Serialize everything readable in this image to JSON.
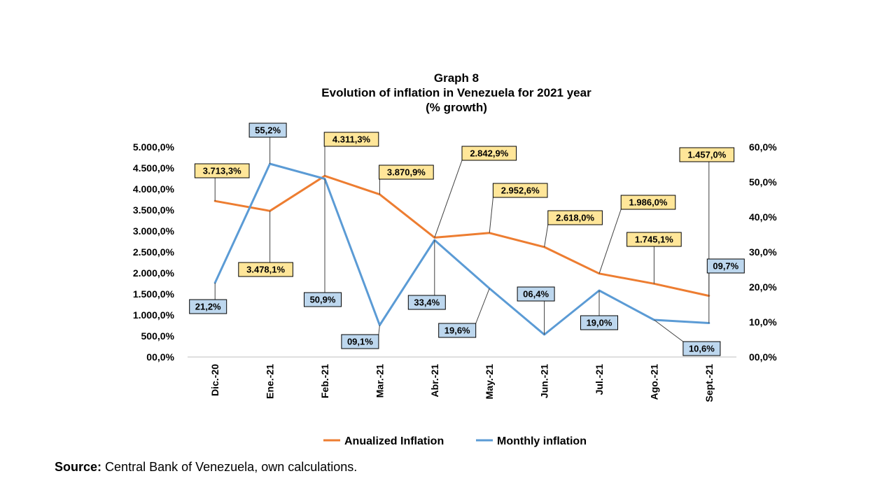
{
  "chart_data": {
    "type": "line",
    "title": [
      "Graph 8",
      "Evolution of inflation in Venezuela for 2021 year",
      "(% growth)"
    ],
    "categories": [
      "Dic.-20",
      "Ene.-21",
      "Feb.-21",
      "Mar.-21",
      "Abr.-21",
      "May.-21",
      "Jun.-21",
      "Jul.-21",
      "Ago.-21",
      "Sept.-21"
    ],
    "left_axis": {
      "min": 0,
      "max": 5000,
      "step": 500,
      "ticks": [
        "00,0%",
        "500,0%",
        "1.000,0%",
        "1.500,0%",
        "2.000,0%",
        "2.500,0%",
        "3.000,0%",
        "3.500,0%",
        "4.000,0%",
        "4.500,0%",
        "5.000,0%"
      ]
    },
    "right_axis": {
      "min": 0,
      "max": 60,
      "step": 10,
      "ticks": [
        "00,0%",
        "10,0%",
        "20,0%",
        "30,0%",
        "40,0%",
        "50,0%",
        "60,0%"
      ]
    },
    "series": [
      {
        "name": "Anualized Inflation",
        "axis": "left",
        "color": "#ED7D31",
        "values": [
          3713.3,
          3478.1,
          4311.3,
          3870.9,
          2842.9,
          2952.6,
          2618.0,
          1986.0,
          1745.1,
          1457.0
        ],
        "labels": [
          "3.713,3%",
          "3.478,1%",
          "4.311,3%",
          "3.870,9%",
          "2.842,9%",
          "2.952,6%",
          "2.618,0%",
          "1.986,0%",
          "1.745,1%",
          "1.457,0%"
        ],
        "label_fill": "#FFE699"
      },
      {
        "name": "Monthly inflation",
        "axis": "right",
        "color": "#5B9BD5",
        "values": [
          21.2,
          55.2,
          50.9,
          9.1,
          33.4,
          19.6,
          6.4,
          19.0,
          10.6,
          9.7
        ],
        "labels": [
          "21,2%",
          "55,2%",
          "50,9%",
          "09,1%",
          "33,4%",
          "19,6%",
          "06,4%",
          "19,0%",
          "10,6%",
          "09,7%"
        ],
        "label_fill": "#BDD7EE"
      }
    ],
    "legend": "bottom"
  },
  "source": {
    "label": "Source:",
    "text": "Central Bank of Venezuela, own calculations."
  }
}
